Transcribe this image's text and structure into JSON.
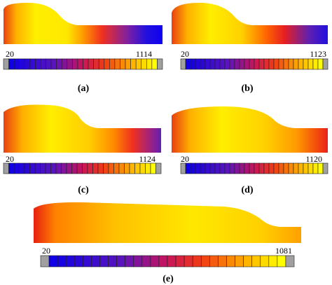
{
  "panels": [
    {
      "min": "20",
      "max": "1114",
      "caption": "(a)"
    },
    {
      "min": "20",
      "max": "1123",
      "caption": "(b)"
    },
    {
      "min": "20",
      "max": "1124",
      "caption": "(c)"
    },
    {
      "min": "20",
      "max": "1120",
      "caption": "(d)"
    },
    {
      "min": "20",
      "max": "1081",
      "caption": "(e)"
    }
  ]
}
